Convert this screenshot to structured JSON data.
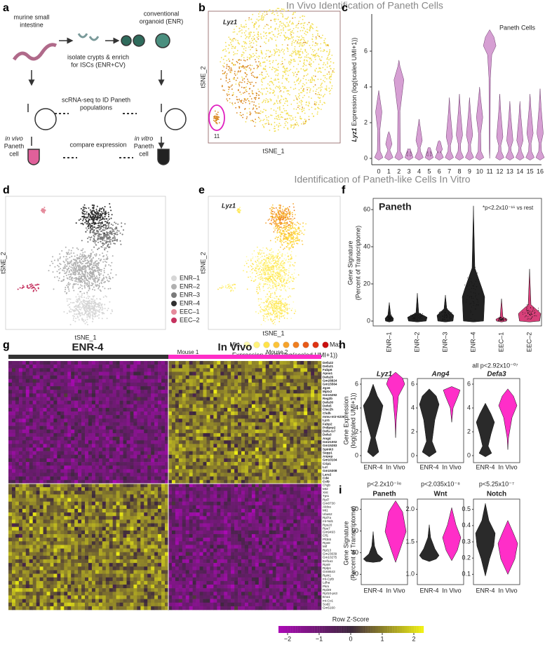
{
  "section_titles": {
    "in_vivo": "In Vivo Identification of Paneth Cells",
    "in_vitro": "Identification of Paneth-like Cells In Vitro"
  },
  "panel_labels": [
    "a",
    "b",
    "c",
    "d",
    "e",
    "f",
    "g",
    "h",
    "i"
  ],
  "a": {
    "intestine": [
      "murine small",
      "intestine"
    ],
    "organoid": [
      "conventional",
      "organoid (ENR)"
    ],
    "isolate": [
      "isolate crypts & enrich",
      "for ISCs (ENR+CV)"
    ],
    "scrna": [
      "scRNA-seq to ID Paneth",
      "populations"
    ],
    "compare": "compare expression",
    "in_vivo": [
      "in vivo",
      "Paneth",
      "cell"
    ],
    "in_vitro": [
      "in vitro",
      "Paneth",
      "cell"
    ]
  },
  "b": {
    "gene": "Lyz1",
    "ylabel": "tSNE_2",
    "xlabel": "tSNE_1",
    "cluster": "11"
  },
  "c": {
    "ylabel_gene": "Lyz1",
    "ylabel": "Expression (log(scaled UMI+1))",
    "yticks": [
      0,
      2,
      4,
      6
    ],
    "categories": [
      0,
      1,
      2,
      3,
      4,
      5,
      6,
      7,
      8,
      9,
      10,
      11,
      12,
      13,
      14,
      15,
      16
    ],
    "annotation": "Paneth Cells"
  },
  "d": {
    "ylabel": "tSNE_2",
    "xlabel": "tSNE_1",
    "legend": [
      {
        "name": "ENR–1",
        "color": "#d6d6d6"
      },
      {
        "name": "ENR–2",
        "color": "#b0b0b0"
      },
      {
        "name": "ENR–3",
        "color": "#7a7a7a"
      },
      {
        "name": "ENR–4",
        "color": "#303030"
      },
      {
        "name": "EEC–1",
        "color": "#e58b9c"
      },
      {
        "name": "EEC–2",
        "color": "#c5315e"
      }
    ]
  },
  "e": {
    "gene": "Lyz1",
    "ylabel": "tSNE_2",
    "xlabel": "tSNE_1",
    "scale_min": "Min",
    "scale_max": "Max",
    "scale_label": "Expression Level (log(scaled UMI+1))",
    "scale_colors": [
      "#fffbb0",
      "#fff27a",
      "#ffe24a",
      "#fbc33a",
      "#f5a32c",
      "#ee7f22",
      "#e65a1a",
      "#dd3414",
      "#c81010"
    ]
  },
  "f": {
    "title": "Paneth",
    "annotation": "*p<2.2x10⁻¹⁶ vs rest",
    "ylabel": [
      "Gene Signature",
      "(Percent of Transcriptome)"
    ],
    "yticks": [
      0,
      20,
      40,
      60
    ],
    "categories": [
      "ENR–1",
      "ENR–2",
      "ENR–3",
      "ENR–4",
      "EEC–1",
      "EEC–2"
    ]
  },
  "g": {
    "group1": "ENR-4",
    "group2": "In Vivo",
    "mouse1": "Mouse 1",
    "mouse2": "Mouse 2",
    "scale_title": "Row Z-Score",
    "scale_ticks": [
      "−2",
      "−1",
      "0",
      "1",
      "2"
    ],
    "genes": [
      "Defa22",
      "Defa21",
      "Fabp6",
      "Apoa1",
      "Defa26",
      "Gm28824",
      "Gm15564",
      "Zg16",
      "Mptx2",
      "Gm15292",
      "Reg3b",
      "Defa30",
      "Defa5",
      "Clec2h",
      "Chdh",
      "mmu-mir-6236",
      "Lyz1",
      "Fabp2",
      "Pnliprp2",
      "Defa-rs7",
      "Defa3",
      "Ang4",
      "Gm21002",
      "Gm15283",
      "Spink3",
      "Sepp1",
      "Anpep",
      "Gm10104",
      "Crip1",
      "Lct",
      "Gm15308",
      "Lars2",
      "Cd4",
      "Ccl9",
      "Chgb",
      "Mt2",
      "Xist",
      "Tpt1",
      "Rpl7",
      "Gm8730",
      "Aldoa",
      "Mt1",
      "Uba52",
      "Rpl7a",
      "mt-Nd1",
      "Rps20",
      "Rps7",
      "Gm9493",
      "Cfl1",
      "Pfdn5",
      "Rps8",
      "Mif",
      "Rpl13",
      "Gm23639",
      "Gm10275",
      "Eef1a1",
      "Rps9",
      "Rplp1",
      "Gm8643",
      "Rpl41",
      "mt-Cytb",
      "Ldha",
      "Pkm",
      "Rpl39",
      "Rpl10-ps3",
      "Eno1",
      "mt-Co1",
      "Sod2",
      "Gm5160"
    ]
  },
  "h": {
    "annotation": "all p<2.92x10⁻⁰⁷",
    "ylabel": [
      "Gene Expression",
      "(log(scaled UMI+1))"
    ],
    "genes": [
      "Lyz1",
      "Ang4",
      "Defa3"
    ],
    "yticks": [
      0,
      2,
      4,
      6
    ],
    "categories": [
      "ENR-4",
      "In Vivo"
    ]
  },
  "i": {
    "ylabel": [
      "Gene Signature",
      "(Percent of Transcriptome)"
    ],
    "categories": [
      "ENR-4",
      "In Vivo"
    ],
    "panels": [
      {
        "title": "Paneth",
        "p": "p<2.2x10⁻¹⁶",
        "yticks": [
          30,
          40,
          50,
          60
        ]
      },
      {
        "title": "Wnt",
        "p": "p<2.035x10⁻⁸",
        "yticks": [
          "1.0",
          "1.5",
          "2.0"
        ]
      },
      {
        "title": "Notch",
        "p": "p<5.25x10⁻⁷",
        "yticks": [
          0.1,
          0.2,
          0.3,
          0.4,
          0.5
        ]
      }
    ]
  }
}
